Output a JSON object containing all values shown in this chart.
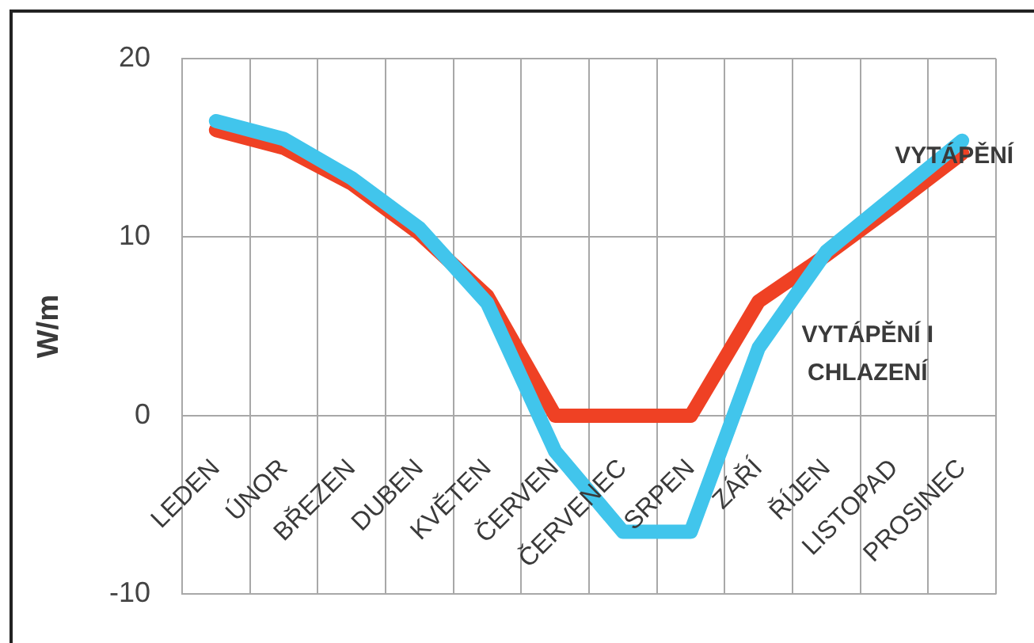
{
  "chart_data": {
    "type": "line",
    "categories": [
      "LEDEN",
      "ÚNOR",
      "BŘEZEN",
      "DUBEN",
      "KVĚTEN",
      "ČERVEN",
      "ČERVENEC",
      "SRPEN",
      "ZÁŘÍ",
      "ŘÍJEN",
      "LISTOPAD",
      "PROSINEC"
    ],
    "ylabel": "W/m",
    "ylim": [
      -10,
      20
    ],
    "yticks": [
      -10,
      0,
      10,
      20
    ],
    "grid": true,
    "legend": false,
    "marker": "none",
    "line_style": "solid",
    "series": [
      {
        "name": "VYTÁPĚNÍ",
        "color": "#ef4124",
        "values": [
          16,
          15,
          13,
          10.2,
          6.7,
          0,
          0,
          0,
          6.4,
          9,
          11.8,
          14.7
        ]
      },
      {
        "name": "VYTÁPĚNÍ I CHLAZENÍ",
        "color": "#41c5ec",
        "values": [
          16.5,
          15.5,
          13.3,
          10.5,
          6.3,
          -2,
          -6.5,
          -6.5,
          3.8,
          9.2,
          12.3,
          15.4
        ]
      }
    ]
  }
}
